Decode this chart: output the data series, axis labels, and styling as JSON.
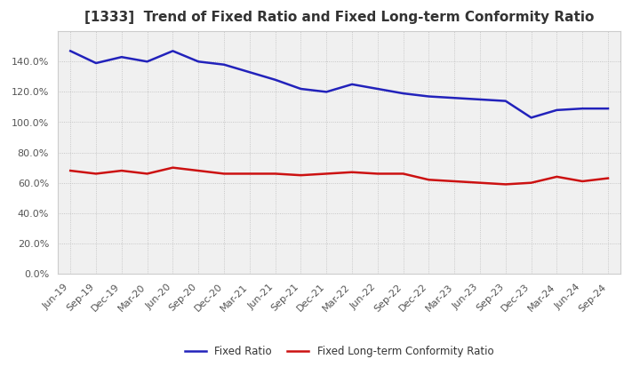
{
  "title": "[1333]  Trend of Fixed Ratio and Fixed Long-term Conformity Ratio",
  "x_labels": [
    "Jun-19",
    "Sep-19",
    "Dec-19",
    "Mar-20",
    "Jun-20",
    "Sep-20",
    "Dec-20",
    "Mar-21",
    "Jun-21",
    "Sep-21",
    "Dec-21",
    "Mar-22",
    "Jun-22",
    "Sep-22",
    "Dec-22",
    "Mar-23",
    "Jun-23",
    "Sep-23",
    "Dec-23",
    "Mar-24",
    "Jun-24",
    "Sep-24"
  ],
  "fixed_ratio": [
    1.47,
    1.39,
    1.43,
    1.4,
    1.47,
    1.4,
    1.38,
    1.33,
    1.28,
    1.22,
    1.2,
    1.25,
    1.22,
    1.19,
    1.17,
    1.16,
    1.15,
    1.14,
    1.03,
    1.08,
    1.09,
    1.09
  ],
  "fixed_lt_ratio": [
    0.68,
    0.66,
    0.68,
    0.66,
    0.7,
    0.68,
    0.66,
    0.66,
    0.66,
    0.65,
    0.66,
    0.67,
    0.66,
    0.66,
    0.62,
    0.61,
    0.6,
    0.59,
    0.6,
    0.64,
    0.61,
    0.63
  ],
  "fixed_ratio_color": "#2222bb",
  "fixed_lt_ratio_color": "#cc1111",
  "background_color": "#ffffff",
  "plot_bg_color": "#f0f0f0",
  "grid_color": "#bbbbbb",
  "ylim": [
    0.0,
    1.6
  ],
  "yticks": [
    0.0,
    0.2,
    0.4,
    0.6,
    0.8,
    1.0,
    1.2,
    1.4
  ],
  "legend_fixed_ratio": "Fixed Ratio",
  "legend_fixed_lt_ratio": "Fixed Long-term Conformity Ratio",
  "title_color": "#333333",
  "title_fontsize": 11,
  "line_width": 1.8,
  "tick_fontsize": 8,
  "ytick_fontsize": 8
}
